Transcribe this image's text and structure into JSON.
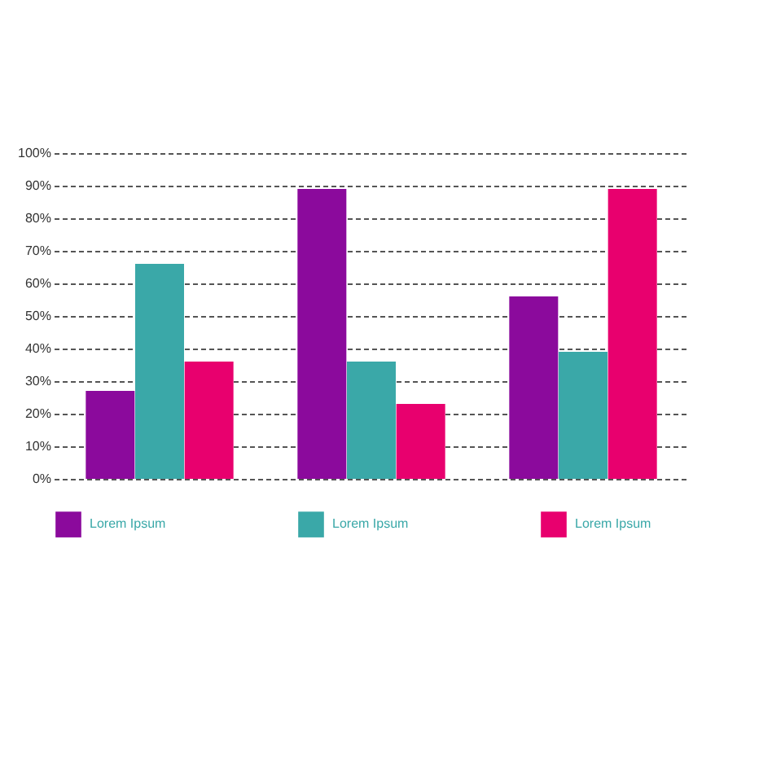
{
  "chart_data": {
    "type": "bar",
    "categories": [
      null,
      null,
      null
    ],
    "series": [
      {
        "name": "Lorem Ipsum",
        "color": "#8b0a9c",
        "values": [
          27,
          89,
          56
        ]
      },
      {
        "name": "Lorem Ipsum",
        "color": "#3aa8a8",
        "values": [
          66,
          36,
          39
        ]
      },
      {
        "name": "Lorem Ipsum",
        "color": "#e8006e",
        "values": [
          36,
          23,
          89
        ]
      }
    ],
    "ylim": [
      0,
      100
    ],
    "yticks": [
      {
        "value": 0,
        "label": "0%"
      },
      {
        "value": 10,
        "label": "10%"
      },
      {
        "value": 20,
        "label": "20%"
      },
      {
        "value": 30,
        "label": "30%"
      },
      {
        "value": 40,
        "label": "40%"
      },
      {
        "value": 50,
        "label": "50%"
      },
      {
        "value": 60,
        "label": "60%"
      },
      {
        "value": 70,
        "label": "70%"
      },
      {
        "value": 80,
        "label": "80%"
      },
      {
        "value": 90,
        "label": "90%"
      },
      {
        "value": 100,
        "label": "100%"
      }
    ],
    "grid": "y",
    "legend": "bottom",
    "tick_labels": "y"
  }
}
